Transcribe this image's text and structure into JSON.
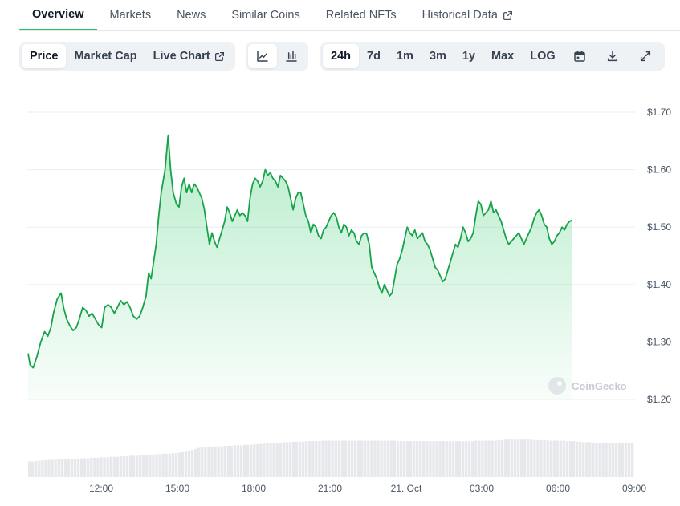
{
  "tabs": [
    {
      "label": "Overview",
      "active": true
    },
    {
      "label": "Markets"
    },
    {
      "label": "News"
    },
    {
      "label": "Similar Coins"
    },
    {
      "label": "Related NFTs"
    },
    {
      "label": "Historical Data",
      "external": true
    }
  ],
  "toolbar": {
    "metrics": [
      {
        "label": "Price",
        "active": true
      },
      {
        "label": "Market Cap"
      },
      {
        "label": "Live Chart",
        "external": true
      }
    ],
    "chart_types": [
      {
        "icon": "line-chart-icon",
        "active": true
      },
      {
        "icon": "candlestick-chart-icon"
      }
    ],
    "ranges": [
      {
        "label": "24h",
        "active": true
      },
      {
        "label": "7d"
      },
      {
        "label": "1m"
      },
      {
        "label": "3m"
      },
      {
        "label": "1y"
      },
      {
        "label": "Max"
      },
      {
        "label": "LOG"
      }
    ],
    "actions": [
      "calendar-icon",
      "download-icon",
      "fullscreen-icon"
    ]
  },
  "watermark": "CoinGecko",
  "colors": {
    "line": "#16a34a",
    "fill": "#22c55e",
    "volume": "#e6e8eb",
    "active_tab": "#22c55e"
  },
  "chart_data": {
    "type": "area",
    "y_ticks": [
      "$1.70",
      "$1.60",
      "$1.50",
      "$1.40",
      "$1.30",
      "$1.20"
    ],
    "y_tick_values": [
      1.7,
      1.6,
      1.5,
      1.4,
      1.3,
      1.2
    ],
    "x_ticks": [
      "12:00",
      "15:00",
      "18:00",
      "21:00",
      "21. Oct",
      "03:00",
      "06:00",
      "09:00"
    ],
    "ylim": [
      1.2,
      1.7
    ],
    "x_range_hours": [
      9.1,
      33.0
    ],
    "grid": true,
    "series": [
      {
        "values": [
          [
            9.1,
            1.28
          ],
          [
            9.18,
            1.26
          ],
          [
            9.3,
            1.255
          ],
          [
            9.45,
            1.275
          ],
          [
            9.6,
            1.3
          ],
          [
            9.75,
            1.318
          ],
          [
            9.88,
            1.31
          ],
          [
            10.0,
            1.325
          ],
          [
            10.1,
            1.35
          ],
          [
            10.25,
            1.375
          ],
          [
            10.4,
            1.385
          ],
          [
            10.5,
            1.36
          ],
          [
            10.62,
            1.34
          ],
          [
            10.75,
            1.328
          ],
          [
            10.88,
            1.32
          ],
          [
            11.0,
            1.325
          ],
          [
            11.12,
            1.34
          ],
          [
            11.25,
            1.36
          ],
          [
            11.38,
            1.355
          ],
          [
            11.5,
            1.345
          ],
          [
            11.62,
            1.35
          ],
          [
            11.75,
            1.34
          ],
          [
            11.88,
            1.33
          ],
          [
            12.0,
            1.325
          ],
          [
            12.12,
            1.36
          ],
          [
            12.25,
            1.365
          ],
          [
            12.38,
            1.36
          ],
          [
            12.5,
            1.35
          ],
          [
            12.62,
            1.36
          ],
          [
            12.75,
            1.372
          ],
          [
            12.88,
            1.365
          ],
          [
            13.0,
            1.37
          ],
          [
            13.12,
            1.36
          ],
          [
            13.25,
            1.345
          ],
          [
            13.38,
            1.34
          ],
          [
            13.5,
            1.345
          ],
          [
            13.62,
            1.36
          ],
          [
            13.75,
            1.38
          ],
          [
            13.85,
            1.42
          ],
          [
            13.95,
            1.41
          ],
          [
            14.05,
            1.44
          ],
          [
            14.15,
            1.47
          ],
          [
            14.25,
            1.52
          ],
          [
            14.35,
            1.56
          ],
          [
            14.5,
            1.6
          ],
          [
            14.62,
            1.66
          ],
          [
            14.72,
            1.6
          ],
          [
            14.82,
            1.56
          ],
          [
            14.95,
            1.54
          ],
          [
            15.05,
            1.535
          ],
          [
            15.15,
            1.57
          ],
          [
            15.25,
            1.585
          ],
          [
            15.35,
            1.56
          ],
          [
            15.45,
            1.575
          ],
          [
            15.55,
            1.56
          ],
          [
            15.65,
            1.575
          ],
          [
            15.75,
            1.57
          ],
          [
            15.85,
            1.56
          ],
          [
            15.95,
            1.55
          ],
          [
            16.05,
            1.53
          ],
          [
            16.15,
            1.5
          ],
          [
            16.25,
            1.47
          ],
          [
            16.35,
            1.49
          ],
          [
            16.45,
            1.475
          ],
          [
            16.55,
            1.465
          ],
          [
            16.65,
            1.48
          ],
          [
            16.75,
            1.495
          ],
          [
            16.85,
            1.51
          ],
          [
            16.95,
            1.535
          ],
          [
            17.05,
            1.525
          ],
          [
            17.15,
            1.51
          ],
          [
            17.25,
            1.52
          ],
          [
            17.35,
            1.53
          ],
          [
            17.45,
            1.52
          ],
          [
            17.55,
            1.525
          ],
          [
            17.65,
            1.52
          ],
          [
            17.75,
            1.51
          ],
          [
            17.85,
            1.55
          ],
          [
            17.95,
            1.575
          ],
          [
            18.05,
            1.585
          ],
          [
            18.15,
            1.58
          ],
          [
            18.25,
            1.57
          ],
          [
            18.35,
            1.58
          ],
          [
            18.45,
            1.6
          ],
          [
            18.55,
            1.59
          ],
          [
            18.65,
            1.595
          ],
          [
            18.75,
            1.585
          ],
          [
            18.85,
            1.58
          ],
          [
            18.95,
            1.57
          ],
          [
            19.05,
            1.59
          ],
          [
            19.15,
            1.585
          ],
          [
            19.25,
            1.58
          ],
          [
            19.35,
            1.57
          ],
          [
            19.45,
            1.55
          ],
          [
            19.55,
            1.53
          ],
          [
            19.65,
            1.55
          ],
          [
            19.75,
            1.56
          ],
          [
            19.85,
            1.56
          ],
          [
            19.95,
            1.54
          ],
          [
            20.05,
            1.52
          ],
          [
            20.15,
            1.51
          ],
          [
            20.25,
            1.49
          ],
          [
            20.35,
            1.505
          ],
          [
            20.45,
            1.5
          ],
          [
            20.55,
            1.485
          ],
          [
            20.65,
            1.48
          ],
          [
            20.75,
            1.495
          ],
          [
            20.85,
            1.5
          ],
          [
            20.95,
            1.51
          ],
          [
            21.05,
            1.52
          ],
          [
            21.15,
            1.525
          ],
          [
            21.25,
            1.518
          ],
          [
            21.35,
            1.5
          ],
          [
            21.45,
            1.49
          ],
          [
            21.55,
            1.505
          ],
          [
            21.65,
            1.5
          ],
          [
            21.75,
            1.485
          ],
          [
            21.85,
            1.495
          ],
          [
            21.95,
            1.49
          ],
          [
            22.05,
            1.475
          ],
          [
            22.15,
            1.47
          ],
          [
            22.25,
            1.485
          ],
          [
            22.35,
            1.49
          ],
          [
            22.45,
            1.488
          ],
          [
            22.55,
            1.47
          ],
          [
            22.65,
            1.43
          ],
          [
            22.75,
            1.42
          ],
          [
            22.85,
            1.41
          ],
          [
            22.95,
            1.395
          ],
          [
            23.05,
            1.385
          ],
          [
            23.15,
            1.4
          ],
          [
            23.25,
            1.39
          ],
          [
            23.35,
            1.38
          ],
          [
            23.45,
            1.385
          ],
          [
            23.55,
            1.41
          ],
          [
            23.65,
            1.435
          ],
          [
            23.75,
            1.445
          ],
          [
            23.85,
            1.46
          ],
          [
            23.95,
            1.48
          ],
          [
            24.05,
            1.5
          ],
          [
            24.15,
            1.49
          ],
          [
            24.25,
            1.485
          ],
          [
            24.35,
            1.495
          ],
          [
            24.45,
            1.48
          ],
          [
            24.55,
            1.485
          ],
          [
            24.65,
            1.49
          ],
          [
            24.75,
            1.475
          ],
          [
            24.85,
            1.47
          ],
          [
            24.95,
            1.46
          ],
          [
            25.05,
            1.445
          ],
          [
            25.15,
            1.43
          ],
          [
            25.25,
            1.425
          ],
          [
            25.35,
            1.415
          ],
          [
            25.45,
            1.405
          ],
          [
            25.55,
            1.41
          ],
          [
            25.65,
            1.425
          ],
          [
            25.75,
            1.44
          ],
          [
            25.85,
            1.455
          ],
          [
            25.95,
            1.47
          ],
          [
            26.05,
            1.465
          ],
          [
            26.15,
            1.48
          ],
          [
            26.25,
            1.5
          ],
          [
            26.35,
            1.49
          ],
          [
            26.45,
            1.475
          ],
          [
            26.55,
            1.48
          ],
          [
            26.65,
            1.49
          ],
          [
            26.75,
            1.52
          ],
          [
            26.85,
            1.545
          ],
          [
            26.95,
            1.54
          ],
          [
            27.05,
            1.52
          ],
          [
            27.15,
            1.525
          ],
          [
            27.25,
            1.53
          ],
          [
            27.35,
            1.545
          ],
          [
            27.45,
            1.525
          ],
          [
            27.55,
            1.53
          ],
          [
            27.65,
            1.52
          ],
          [
            27.75,
            1.51
          ],
          [
            27.85,
            1.495
          ],
          [
            27.95,
            1.48
          ],
          [
            28.05,
            1.47
          ],
          [
            28.15,
            1.475
          ],
          [
            28.25,
            1.48
          ],
          [
            28.35,
            1.485
          ],
          [
            28.45,
            1.49
          ],
          [
            28.55,
            1.48
          ],
          [
            28.65,
            1.47
          ],
          [
            28.75,
            1.48
          ],
          [
            28.85,
            1.49
          ],
          [
            28.95,
            1.5
          ],
          [
            29.05,
            1.515
          ],
          [
            29.15,
            1.525
          ],
          [
            29.25,
            1.53
          ],
          [
            29.35,
            1.52
          ],
          [
            29.45,
            1.505
          ],
          [
            29.55,
            1.5
          ],
          [
            29.65,
            1.48
          ],
          [
            29.75,
            1.47
          ],
          [
            29.85,
            1.475
          ],
          [
            29.95,
            1.485
          ],
          [
            30.05,
            1.49
          ],
          [
            30.15,
            1.5
          ],
          [
            30.25,
            1.495
          ],
          [
            30.35,
            1.505
          ],
          [
            30.45,
            1.51
          ],
          [
            30.55,
            1.512
          ]
        ]
      }
    ],
    "volume": [
      0.3,
      0.3,
      0.31,
      0.31,
      0.32,
      0.32,
      0.33,
      0.33,
      0.33,
      0.34,
      0.34,
      0.34,
      0.35,
      0.35,
      0.35,
      0.35,
      0.36,
      0.36,
      0.36,
      0.37,
      0.37,
      0.37,
      0.38,
      0.38,
      0.38,
      0.39,
      0.39,
      0.39,
      0.4,
      0.4,
      0.4,
      0.41,
      0.41,
      0.41,
      0.42,
      0.42,
      0.43,
      0.43,
      0.43,
      0.44,
      0.44,
      0.45,
      0.45,
      0.45,
      0.46,
      0.46,
      0.47,
      0.48,
      0.49,
      0.5,
      0.52,
      0.54,
      0.56,
      0.57,
      0.58,
      0.58,
      0.58,
      0.59,
      0.59,
      0.59,
      0.6,
      0.6,
      0.6,
      0.61,
      0.61,
      0.61,
      0.62,
      0.62,
      0.62,
      0.63,
      0.63,
      0.64,
      0.64,
      0.65,
      0.65,
      0.66,
      0.66,
      0.66,
      0.67,
      0.67,
      0.67,
      0.68,
      0.68,
      0.68,
      0.68,
      0.69,
      0.69,
      0.69,
      0.69,
      0.69,
      0.7,
      0.7,
      0.7,
      0.7,
      0.7,
      0.7,
      0.7,
      0.7,
      0.7,
      0.7,
      0.7,
      0.7,
      0.7,
      0.7,
      0.7,
      0.7,
      0.7,
      0.7,
      0.7,
      0.7,
      0.7,
      0.7,
      0.7,
      0.69,
      0.69,
      0.69,
      0.69,
      0.69,
      0.69,
      0.69,
      0.69,
      0.69,
      0.69,
      0.69,
      0.69,
      0.69,
      0.69,
      0.69,
      0.69,
      0.69,
      0.69,
      0.69,
      0.69,
      0.69,
      0.69,
      0.69,
      0.69,
      0.7,
      0.7,
      0.7,
      0.7,
      0.7,
      0.7,
      0.7,
      0.71,
      0.71,
      0.72,
      0.72,
      0.72,
      0.72,
      0.72,
      0.72,
      0.72,
      0.72,
      0.72,
      0.71,
      0.71,
      0.71,
      0.71,
      0.71,
      0.7,
      0.7,
      0.7,
      0.7,
      0.7,
      0.69,
      0.69,
      0.69,
      0.68,
      0.68,
      0.67,
      0.67,
      0.67,
      0.66,
      0.66,
      0.66,
      0.66,
      0.66,
      0.66,
      0.66,
      0.66,
      0.66,
      0.66,
      0.66,
      0.66,
      0.66
    ]
  }
}
